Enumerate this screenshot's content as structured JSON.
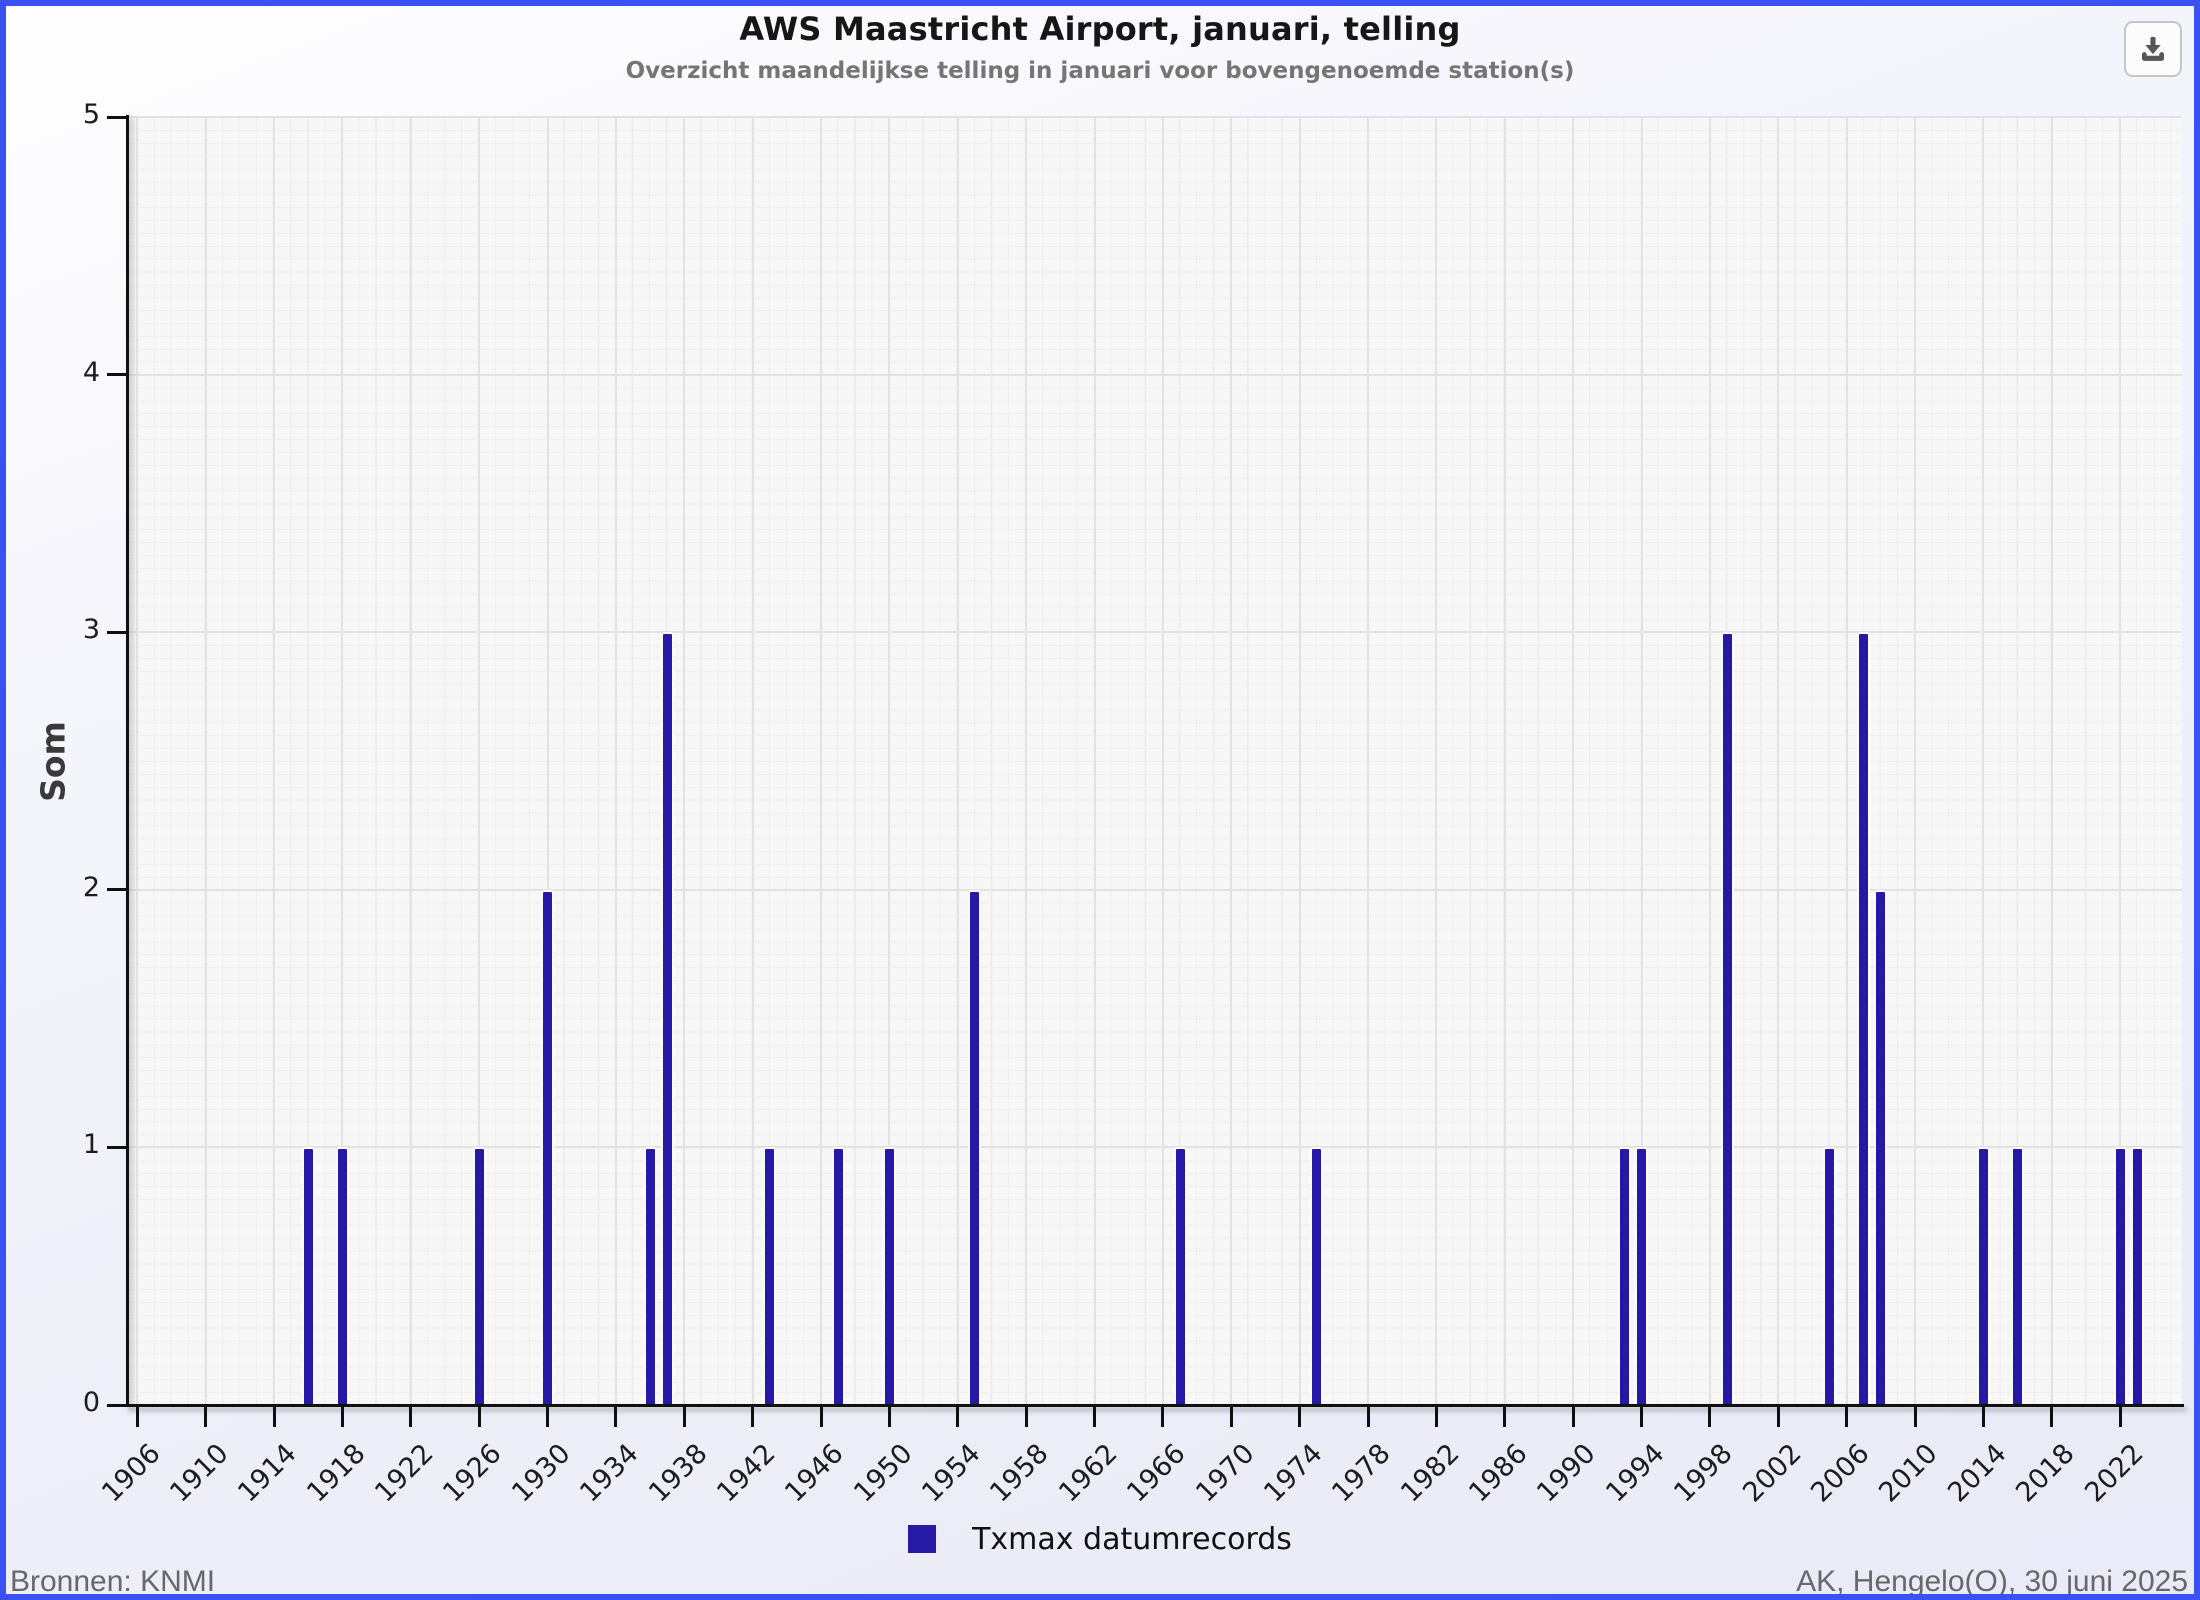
{
  "header": {
    "title": "AWS Maastricht Airport, januari, telling",
    "subtitle": "Overzicht maandelijkse telling in januari voor bovengenoemde station(s)",
    "download_icon": "download-icon"
  },
  "chart_data": {
    "type": "bar",
    "title": "AWS Maastricht Airport, januari, telling",
    "subtitle": "Overzicht maandelijkse telling in januari voor bovengenoemde station(s)",
    "xlabel": "",
    "ylabel": "Som",
    "ylim": [
      0,
      5
    ],
    "yticks": [
      "0",
      "1",
      "2",
      "3",
      "4",
      "5"
    ],
    "xtick_labels": [
      "1906",
      "1910",
      "1914",
      "1918",
      "1922",
      "1926",
      "1930",
      "1934",
      "1938",
      "1942",
      "1946",
      "1950",
      "1954",
      "1958",
      "1962",
      "1966",
      "1970",
      "1974",
      "1978",
      "1982",
      "1986",
      "1990",
      "1994",
      "1998",
      "2002",
      "2006",
      "2010",
      "2014",
      "2018",
      "2022"
    ],
    "x_domain_years": [
      1905.5,
      2025.5
    ],
    "grid": true,
    "legend_position": "bottom",
    "plot_background": "#f7f7f7",
    "series": [
      {
        "name": "Txmax datumrecords",
        "color": "#2619A6",
        "points": [
          {
            "year": 1916,
            "value": 1
          },
          {
            "year": 1918,
            "value": 1
          },
          {
            "year": 1926,
            "value": 1
          },
          {
            "year": 1930,
            "value": 2
          },
          {
            "year": 1936,
            "value": 1
          },
          {
            "year": 1937,
            "value": 3
          },
          {
            "year": 1943,
            "value": 1
          },
          {
            "year": 1947,
            "value": 1
          },
          {
            "year": 1950,
            "value": 1
          },
          {
            "year": 1955,
            "value": 2
          },
          {
            "year": 1967,
            "value": 1
          },
          {
            "year": 1975,
            "value": 1
          },
          {
            "year": 1993,
            "value": 1
          },
          {
            "year": 1994,
            "value": 1
          },
          {
            "year": 1999,
            "value": 3
          },
          {
            "year": 2005,
            "value": 1
          },
          {
            "year": 2007,
            "value": 3
          },
          {
            "year": 2008,
            "value": 2
          },
          {
            "year": 2014,
            "value": 1
          },
          {
            "year": 2016,
            "value": 1
          },
          {
            "year": 2022,
            "value": 1
          },
          {
            "year": 2023,
            "value": 1
          }
        ]
      }
    ]
  },
  "legend": {
    "label": "Txmax datumrecords",
    "swatch_color": "#2619A6"
  },
  "footer": {
    "left": "Bronnen: KNMI",
    "right": "AK, Hengelo(O), 30 juni 2025"
  }
}
